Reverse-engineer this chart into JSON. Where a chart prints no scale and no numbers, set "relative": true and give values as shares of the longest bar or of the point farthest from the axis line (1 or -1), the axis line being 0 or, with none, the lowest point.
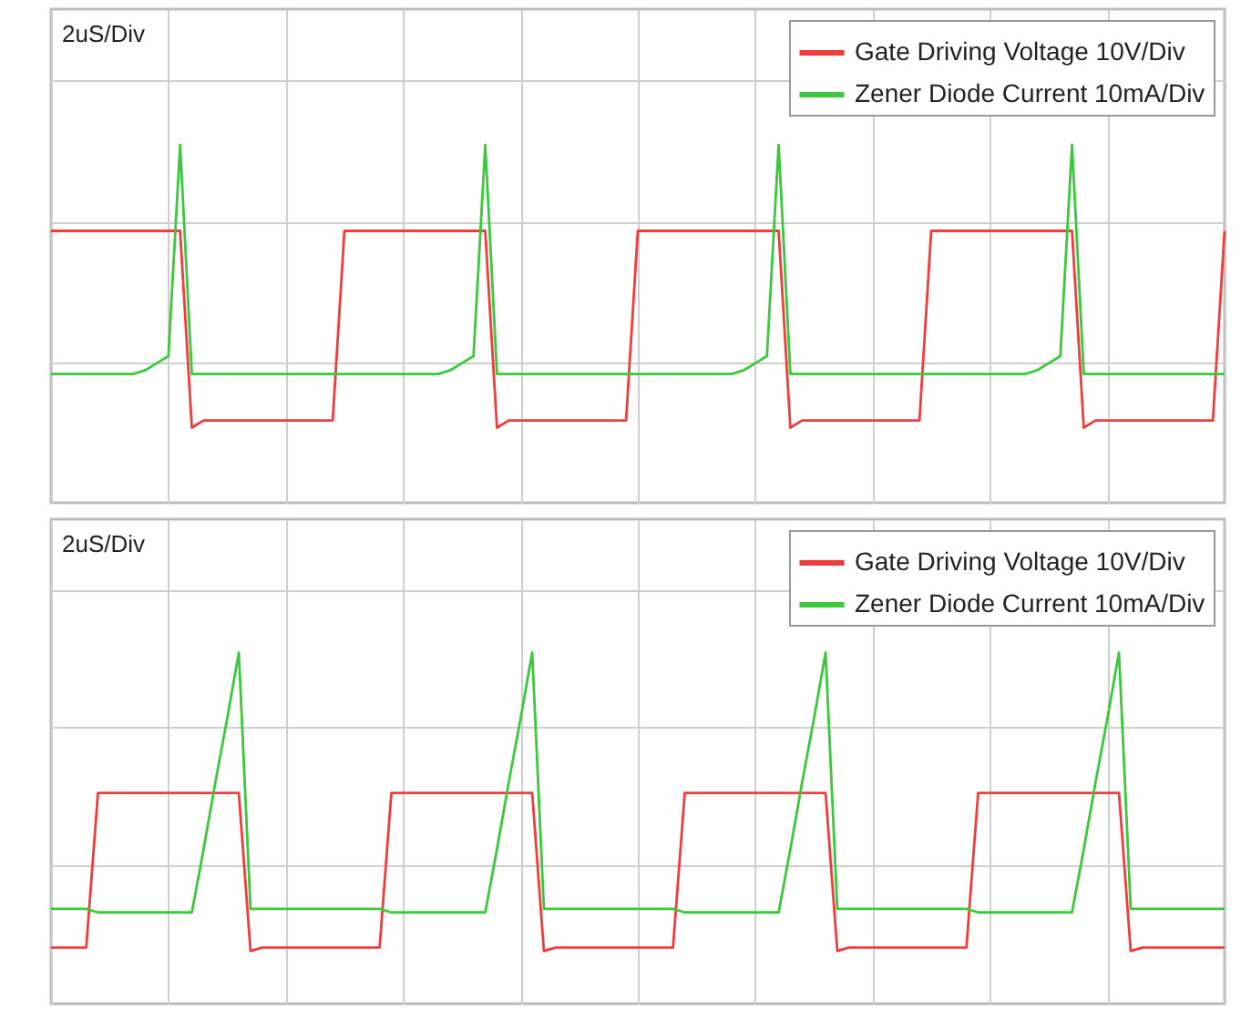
{
  "chart_data": [
    {
      "type": "line",
      "relative": true,
      "grid": true,
      "legend": "top right",
      "tick_labels": false,
      "line_style": "solid",
      "annotations": [
        "2uS/Div"
      ],
      "categories": [
        null,
        null,
        null,
        null,
        null,
        null,
        null,
        null,
        null,
        null,
        null,
        null,
        null,
        null,
        null,
        null,
        null,
        null,
        null,
        null,
        null,
        null,
        null,
        null,
        null,
        null,
        null,
        null,
        null,
        null,
        null,
        null,
        null,
        null,
        null,
        null,
        null,
        null,
        null,
        null,
        null,
        null,
        null,
        null,
        null,
        null,
        null,
        null,
        null,
        null,
        null,
        null,
        null,
        null,
        null,
        null,
        null,
        null,
        null,
        null,
        null,
        null,
        null,
        null,
        null,
        null,
        null,
        null,
        null,
        null,
        null,
        null,
        null,
        null,
        null,
        null,
        null,
        null,
        null,
        null,
        null,
        null,
        null,
        null,
        null,
        null,
        null,
        null,
        null,
        null,
        null,
        null,
        null,
        null,
        null,
        null,
        null,
        null,
        null,
        null,
        null
      ],
      "series": [
        {
          "name": "Gate Driving Voltage 10V/Div",
          "color": "#f03c3c",
          "values": [
            0.76,
            0.76,
            0.76,
            0.76,
            0.76,
            0.76,
            0.76,
            0.76,
            0.76,
            0.76,
            0.76,
            0.76,
            0.21,
            0.23,
            0.23,
            0.23,
            0.23,
            0.23,
            0.23,
            0.23,
            0.23,
            0.23,
            0.23,
            0.23,
            0.23,
            0.76,
            0.76,
            0.76,
            0.76,
            0.76,
            0.76,
            0.76,
            0.76,
            0.76,
            0.76,
            0.76,
            0.76,
            0.76,
            0.21,
            0.23,
            0.23,
            0.23,
            0.23,
            0.23,
            0.23,
            0.23,
            0.23,
            0.23,
            0.23,
            0.23,
            0.76,
            0.76,
            0.76,
            0.76,
            0.76,
            0.76,
            0.76,
            0.76,
            0.76,
            0.76,
            0.76,
            0.76,
            0.76,
            0.21,
            0.23,
            0.23,
            0.23,
            0.23,
            0.23,
            0.23,
            0.23,
            0.23,
            0.23,
            0.23,
            0.23,
            0.76,
            0.76,
            0.76,
            0.76,
            0.76,
            0.76,
            0.76,
            0.76,
            0.76,
            0.76,
            0.76,
            0.76,
            0.76,
            0.21,
            0.23,
            0.23,
            0.23,
            0.23,
            0.23,
            0.23,
            0.23,
            0.23,
            0.23,
            0.23,
            0.23,
            0.76
          ]
        },
        {
          "name": "Zener Diode Current 10mA/Div",
          "color": "#3cc83c",
          "values": [
            0.36,
            0.36,
            0.36,
            0.36,
            0.36,
            0.36,
            0.36,
            0.36,
            0.37,
            0.39,
            0.41,
            1,
            0.36,
            0.36,
            0.36,
            0.36,
            0.36,
            0.36,
            0.36,
            0.36,
            0.36,
            0.36,
            0.36,
            0.36,
            0.36,
            0.36,
            0.36,
            0.36,
            0.36,
            0.36,
            0.36,
            0.36,
            0.36,
            0.36,
            0.37,
            0.39,
            0.41,
            1,
            0.36,
            0.36,
            0.36,
            0.36,
            0.36,
            0.36,
            0.36,
            0.36,
            0.36,
            0.36,
            0.36,
            0.36,
            0.36,
            0.36,
            0.36,
            0.36,
            0.36,
            0.36,
            0.36,
            0.36,
            0.36,
            0.37,
            0.39,
            0.41,
            1,
            0.36,
            0.36,
            0.36,
            0.36,
            0.36,
            0.36,
            0.36,
            0.36,
            0.36,
            0.36,
            0.36,
            0.36,
            0.36,
            0.36,
            0.36,
            0.36,
            0.36,
            0.36,
            0.36,
            0.36,
            0.36,
            0.37,
            0.39,
            0.41,
            1,
            0.36,
            0.36,
            0.36,
            0.36,
            0.36,
            0.36,
            0.36,
            0.36,
            0.36,
            0.36,
            0.36,
            0.36,
            0.36
          ]
        }
      ]
    },
    {
      "type": "line",
      "relative": true,
      "grid": true,
      "legend": "top right",
      "tick_labels": false,
      "line_style": "solid",
      "annotations": [
        "2uS/Div"
      ],
      "categories": [
        null,
        null,
        null,
        null,
        null,
        null,
        null,
        null,
        null,
        null,
        null,
        null,
        null,
        null,
        null,
        null,
        null,
        null,
        null,
        null,
        null,
        null,
        null,
        null,
        null,
        null,
        null,
        null,
        null,
        null,
        null,
        null,
        null,
        null,
        null,
        null,
        null,
        null,
        null,
        null,
        null,
        null,
        null,
        null,
        null,
        null,
        null,
        null,
        null,
        null,
        null,
        null,
        null,
        null,
        null,
        null,
        null,
        null,
        null,
        null,
        null,
        null,
        null,
        null,
        null,
        null,
        null,
        null,
        null,
        null,
        null,
        null,
        null,
        null,
        null,
        null,
        null,
        null,
        null,
        null,
        null,
        null,
        null,
        null,
        null,
        null,
        null,
        null,
        null,
        null,
        null,
        null,
        null,
        null,
        null,
        null,
        null,
        null,
        null,
        null,
        null
      ],
      "series": [
        {
          "name": "Gate Driving Voltage 10V/Div",
          "color": "#f03c3c",
          "values": [
            0.16,
            0.16,
            0.16,
            0.16,
            0.6,
            0.6,
            0.6,
            0.6,
            0.6,
            0.6,
            0.6,
            0.6,
            0.6,
            0.6,
            0.6,
            0.6,
            0.6,
            0.15,
            0.16,
            0.16,
            0.16,
            0.16,
            0.16,
            0.16,
            0.16,
            0.16,
            0.16,
            0.16,
            0.16,
            0.6,
            0.6,
            0.6,
            0.6,
            0.6,
            0.6,
            0.6,
            0.6,
            0.6,
            0.6,
            0.6,
            0.6,
            0.6,
            0.15,
            0.16,
            0.16,
            0.16,
            0.16,
            0.16,
            0.16,
            0.16,
            0.16,
            0.16,
            0.16,
            0.16,
            0.6,
            0.6,
            0.6,
            0.6,
            0.6,
            0.6,
            0.6,
            0.6,
            0.6,
            0.6,
            0.6,
            0.6,
            0.6,
            0.15,
            0.16,
            0.16,
            0.16,
            0.16,
            0.16,
            0.16,
            0.16,
            0.16,
            0.16,
            0.16,
            0.16,
            0.6,
            0.6,
            0.6,
            0.6,
            0.6,
            0.6,
            0.6,
            0.6,
            0.6,
            0.6,
            0.6,
            0.6,
            0.6,
            0.15,
            0.16,
            0.16,
            0.16,
            0.16,
            0.16,
            0.16,
            0.16,
            0.16
          ]
        },
        {
          "name": "Zener Diode Current 10mA/Div",
          "color": "#3cc83c",
          "values": [
            0.27,
            0.27,
            0.27,
            0.27,
            0.26,
            0.26,
            0.26,
            0.26,
            0.26,
            0.26,
            0.26,
            0.26,
            0.26,
            0.44,
            0.63,
            0.81,
            1,
            0.27,
            0.27,
            0.27,
            0.27,
            0.27,
            0.27,
            0.27,
            0.27,
            0.27,
            0.27,
            0.27,
            0.27,
            0.26,
            0.26,
            0.26,
            0.26,
            0.26,
            0.26,
            0.26,
            0.26,
            0.26,
            0.44,
            0.63,
            0.81,
            1,
            0.27,
            0.27,
            0.27,
            0.27,
            0.27,
            0.27,
            0.27,
            0.27,
            0.27,
            0.27,
            0.27,
            0.27,
            0.26,
            0.26,
            0.26,
            0.26,
            0.26,
            0.26,
            0.26,
            0.26,
            0.26,
            0.44,
            0.63,
            0.81,
            1,
            0.27,
            0.27,
            0.27,
            0.27,
            0.27,
            0.27,
            0.27,
            0.27,
            0.27,
            0.27,
            0.27,
            0.27,
            0.26,
            0.26,
            0.26,
            0.26,
            0.26,
            0.26,
            0.26,
            0.26,
            0.26,
            0.44,
            0.63,
            0.81,
            1,
            0.27,
            0.27,
            0.27,
            0.27,
            0.27,
            0.27,
            0.27,
            0.27,
            0.27
          ]
        }
      ]
    }
  ]
}
